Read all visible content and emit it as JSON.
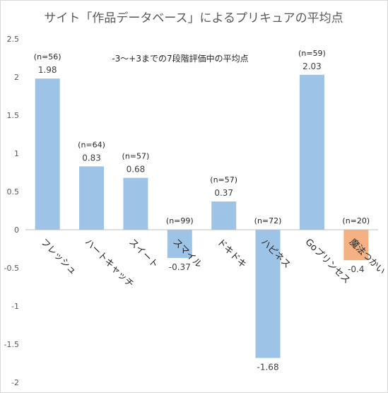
{
  "chart_data": {
    "type": "bar",
    "title": "サイト「作品データベース」によるプリキュアの平均点",
    "annotation": "-3〜+3までの7段階評価中の平均点",
    "categories": [
      "フレッシュ",
      "ハートキャッチ",
      "スイート",
      "スマイル",
      "ドキドキ",
      "ハピネス",
      "Goプリンセス",
      "魔法つかい"
    ],
    "values": [
      1.98,
      0.83,
      0.68,
      -0.37,
      0.37,
      -1.68,
      2.03,
      -0.4
    ],
    "value_labels": [
      "1.98",
      "0.83",
      "0.68",
      "-0.37",
      "0.37",
      "-1.68",
      "2.03",
      "-0.4"
    ],
    "n_labels": [
      "(n=56)",
      "(n=64)",
      "(n=57)",
      "(n=99)",
      "(n=57)",
      "(n=72)",
      "(n=59)",
      "(n=20)"
    ],
    "bar_colors": [
      "#9dc3e6",
      "#9dc3e6",
      "#9dc3e6",
      "#9dc3e6",
      "#9dc3e6",
      "#9dc3e6",
      "#9dc3e6",
      "#f4b183"
    ],
    "ylim": [
      -2,
      2.5
    ],
    "yticks": [
      -2,
      -1.5,
      -1,
      -0.5,
      0,
      0.5,
      1,
      1.5,
      2,
      2.5
    ],
    "ytick_labels": [
      "-2",
      "-1.5",
      "-1",
      "-0.5",
      "0",
      "0.5",
      "1",
      "1.5",
      "2",
      "2.5"
    ],
    "grid": false,
    "legend": "none",
    "xlabel": "",
    "ylabel": ""
  }
}
